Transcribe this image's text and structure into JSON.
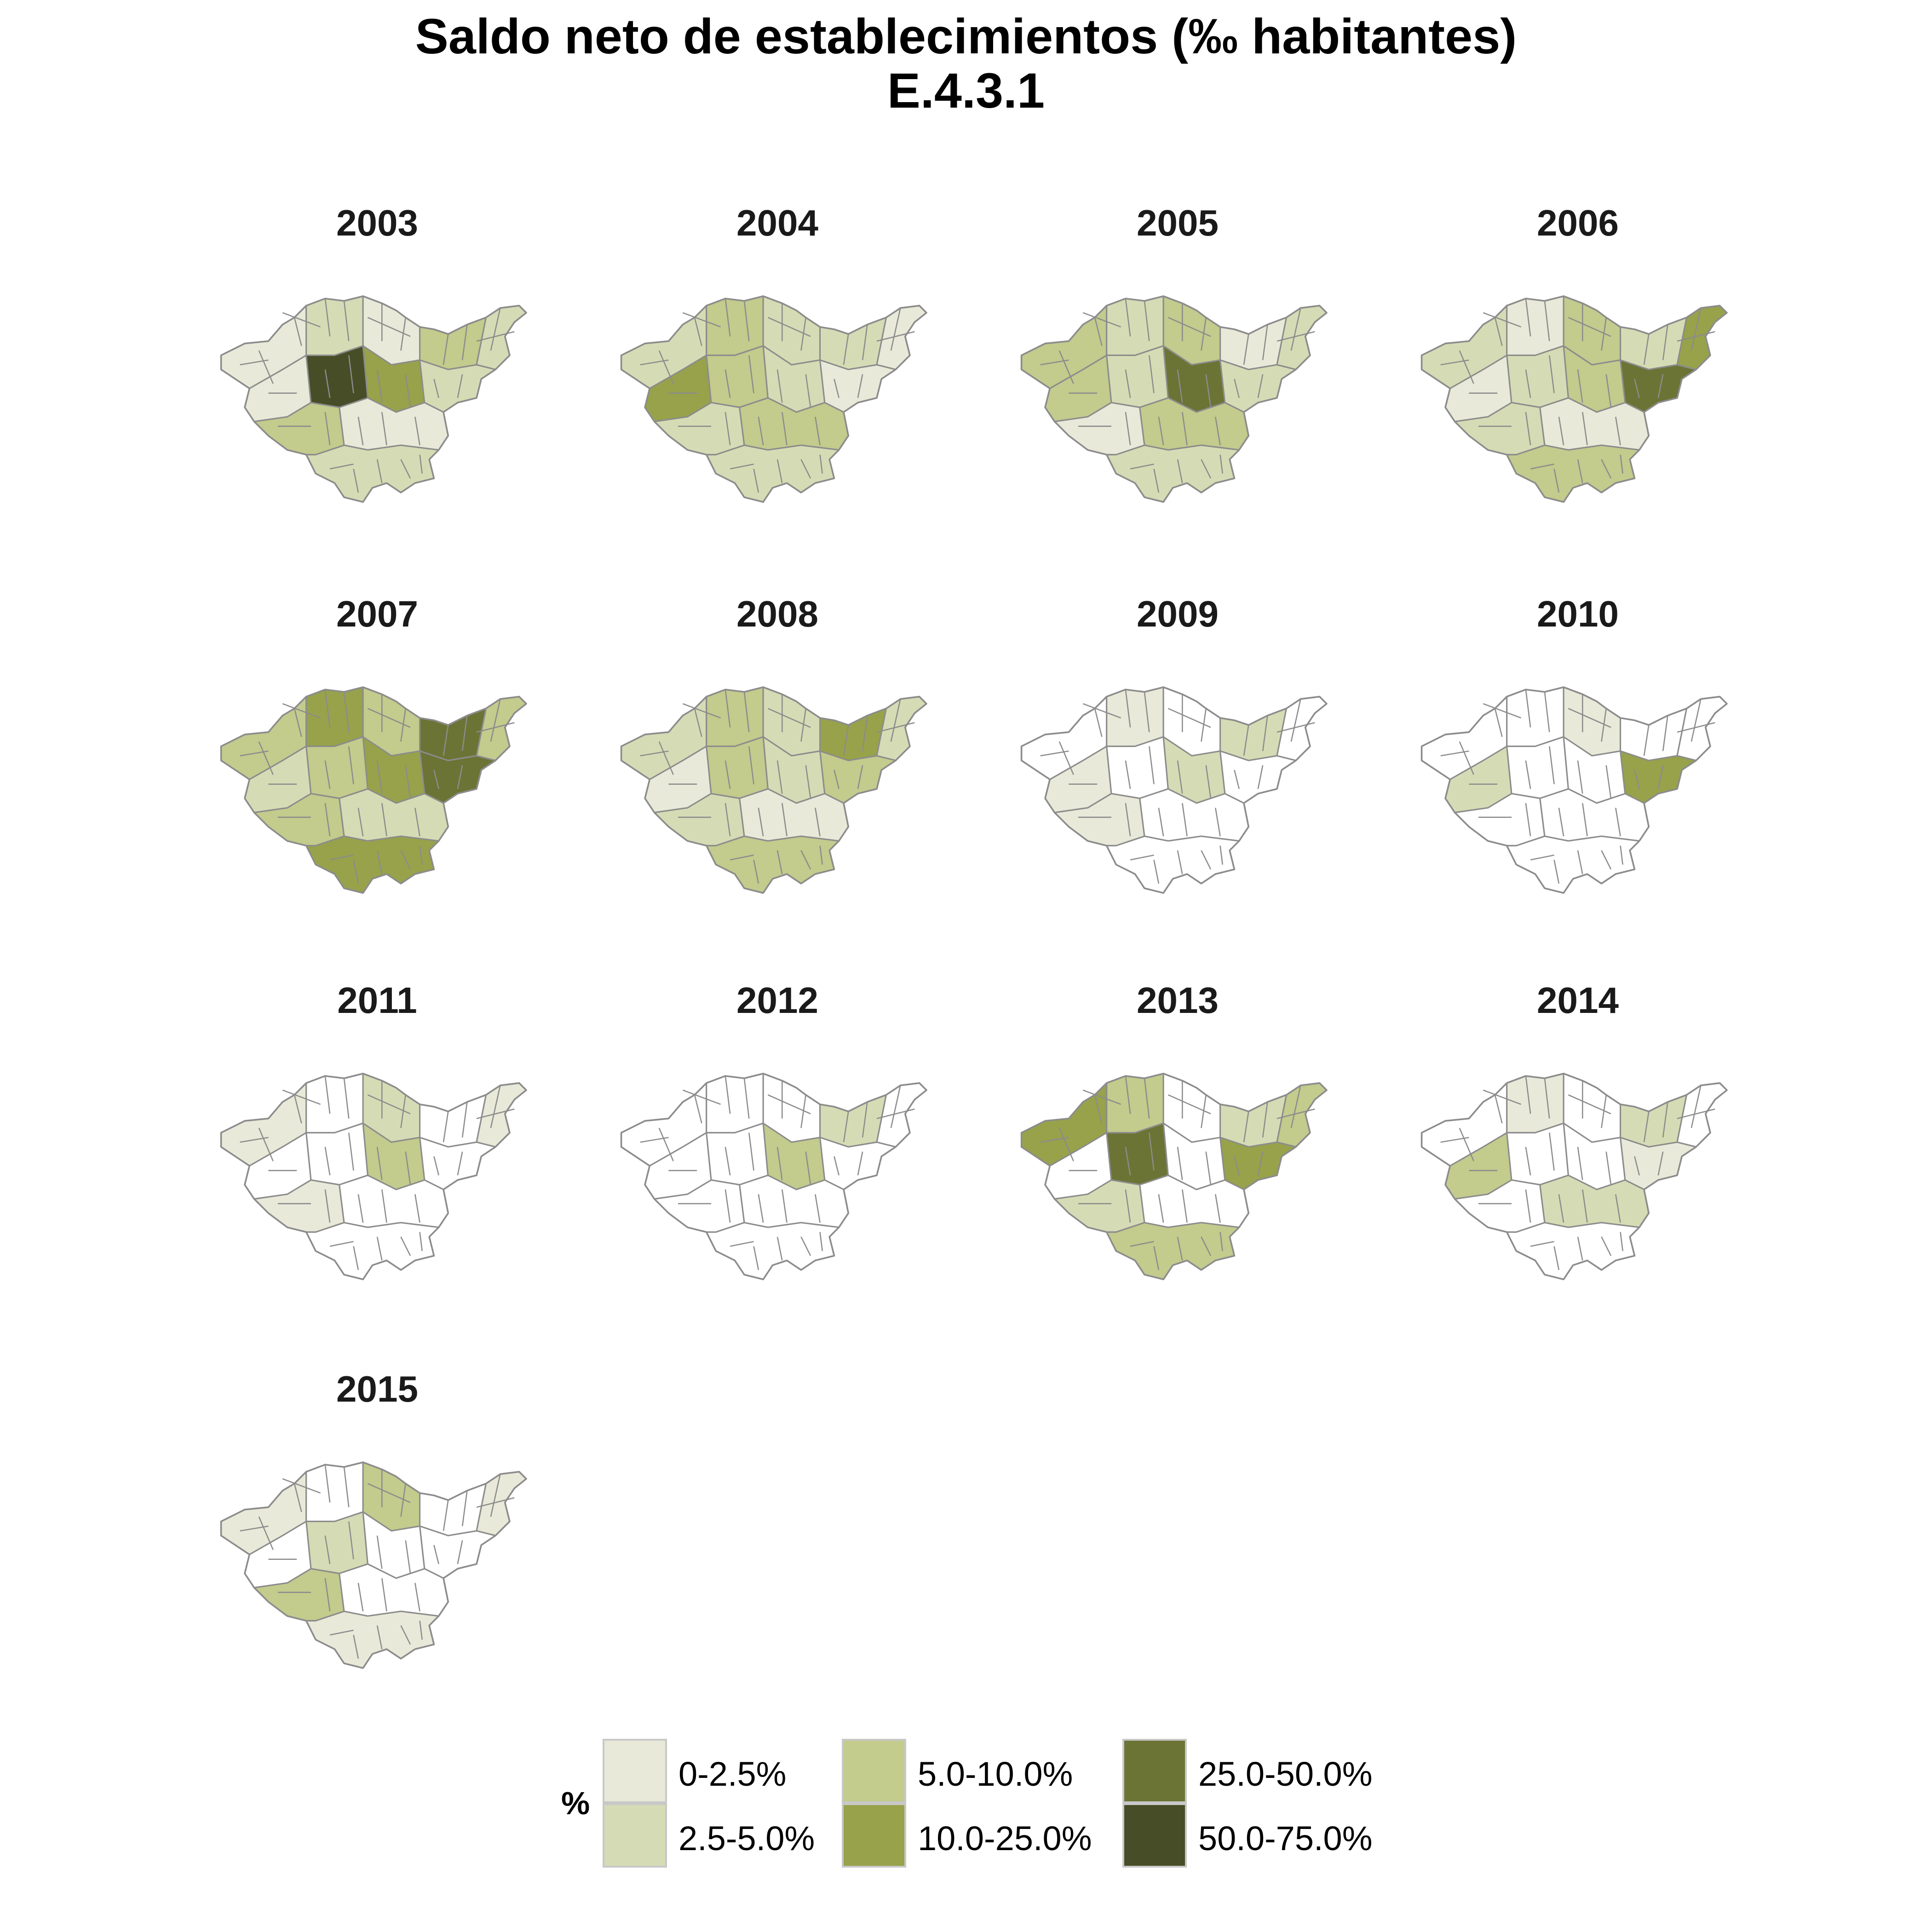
{
  "title": {
    "line1": "Saldo neto de establecimientos (‰ habitantes)",
    "line2": "E.4.3.1"
  },
  "panels": [
    {
      "year": "2003",
      "fills": [
        "c0",
        "c1",
        "c0",
        "c2",
        "c1",
        "c0",
        "c5",
        "c3",
        "c1",
        "c2",
        "c0",
        "c1"
      ]
    },
    {
      "year": "2004",
      "fills": [
        "c1",
        "c2",
        "c1",
        "c1",
        "c0",
        "c3",
        "c2",
        "c1",
        "c0",
        "c1",
        "c2",
        "c1"
      ]
    },
    {
      "year": "2005",
      "fills": [
        "c2",
        "c1",
        "c2",
        "c0",
        "c1",
        "c2",
        "c1",
        "c4",
        "c1",
        "c0",
        "c2",
        "c1"
      ]
    },
    {
      "year": "2006",
      "fills": [
        "c1",
        "c0",
        "c2",
        "c1",
        "c3",
        "c0",
        "c1",
        "c2",
        "c4",
        "c1",
        "c0",
        "c2"
      ]
    },
    {
      "year": "2007",
      "fills": [
        "c2",
        "c3",
        "c2",
        "c4",
        "c2",
        "c1",
        "c2",
        "c3",
        "c4",
        "c2",
        "c1",
        "c3"
      ]
    },
    {
      "year": "2008",
      "fills": [
        "c1",
        "c2",
        "c1",
        "c3",
        "c1",
        "c0",
        "c2",
        "c1",
        "c2",
        "c1",
        "c0",
        "c2"
      ]
    },
    {
      "year": "2009",
      "fills": [
        "none",
        "c0",
        "none",
        "c1",
        "none",
        "c0",
        "none",
        "c1",
        "none",
        "c0",
        "none",
        "none"
      ]
    },
    {
      "year": "2010",
      "fills": [
        "none",
        "none",
        "c0",
        "none",
        "none",
        "c1",
        "none",
        "none",
        "c3",
        "none",
        "none",
        "none"
      ]
    },
    {
      "year": "2011",
      "fills": [
        "c0",
        "none",
        "c1",
        "none",
        "c0",
        "none",
        "none",
        "c2",
        "none",
        "c0",
        "none",
        "none"
      ]
    },
    {
      "year": "2012",
      "fills": [
        "none",
        "none",
        "none",
        "c1",
        "none",
        "none",
        "none",
        "c2",
        "none",
        "none",
        "none",
        "none"
      ]
    },
    {
      "year": "2013",
      "fills": [
        "c3",
        "c2",
        "none",
        "c1",
        "c2",
        "none",
        "c4",
        "none",
        "c3",
        "c1",
        "none",
        "c2"
      ]
    },
    {
      "year": "2014",
      "fills": [
        "none",
        "c0",
        "none",
        "c1",
        "none",
        "c2",
        "none",
        "none",
        "c0",
        "none",
        "c1",
        "none"
      ]
    },
    {
      "year": "2015",
      "fills": [
        "c0",
        "none",
        "c2",
        "none",
        "c0",
        "none",
        "c1",
        "none",
        "none",
        "c2",
        "none",
        "c0"
      ]
    }
  ],
  "legend": {
    "title": "%",
    "items": [
      {
        "label": "0-2.5%",
        "color": "#e8e9d8"
      },
      {
        "label": "2.5-5.0%",
        "color": "#d5dcb5"
      },
      {
        "label": "5.0-10.0%",
        "color": "#c3cb8d"
      },
      {
        "label": "10.0-25.0%",
        "color": "#97a24a"
      },
      {
        "label": "25.0-50.0%",
        "color": "#6b7435"
      },
      {
        "label": "50.0-75.0%",
        "color": "#474d26"
      }
    ]
  },
  "colors": {
    "c0": "#e8e9d8",
    "c1": "#d5dcb5",
    "c2": "#c3cb8d",
    "c3": "#97a24a",
    "c4": "#6b7435",
    "c5": "#474d26",
    "none": "#ffffff",
    "border": "#8c8c8c"
  }
}
